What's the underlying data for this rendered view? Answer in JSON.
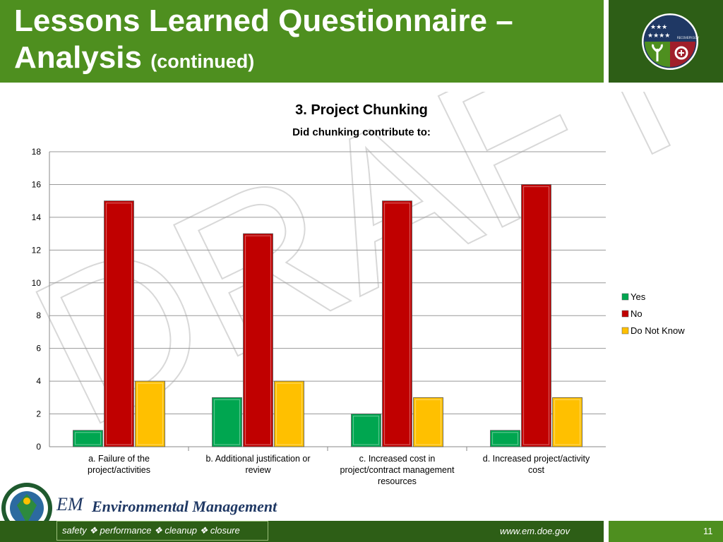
{
  "header": {
    "title_line1": "Lessons Learned Questionnaire –",
    "title_line2": "Analysis",
    "title_suffix": "(continued)",
    "seal_text": "RECOVERY.GOV"
  },
  "watermark": "DRAFT",
  "chart_data": {
    "type": "bar",
    "title": "3. Project Chunking",
    "subtitle": "Did chunking contribute to:",
    "categories": [
      [
        "a.  Failure of the",
        "project/activities"
      ],
      [
        "b.  Additional justification or",
        "review"
      ],
      [
        "c.  Increased cost in",
        "project/contract management",
        "resources"
      ],
      [
        "d.  Increased project/activity",
        "cost"
      ]
    ],
    "series": [
      {
        "name": "Yes",
        "values": [
          1,
          3,
          2,
          1
        ],
        "color": "#00a650"
      },
      {
        "name": "No",
        "values": [
          15,
          13,
          15,
          16
        ],
        "color": "#c00000"
      },
      {
        "name": "Do Not Know",
        "values": [
          4,
          4,
          3,
          3
        ],
        "color": "#ffc000"
      }
    ],
    "ylim": [
      0,
      18
    ],
    "yticks": [
      0,
      2,
      4,
      6,
      8,
      10,
      12,
      14,
      16,
      18
    ],
    "grid": true,
    "legend": "right"
  },
  "footer": {
    "em_logo": "EM",
    "em_text": "Environmental Management",
    "tagline": "safety ❖ performance ❖ cleanup ❖ closure",
    "website": "www.em.doe.gov",
    "page_number": "11"
  }
}
